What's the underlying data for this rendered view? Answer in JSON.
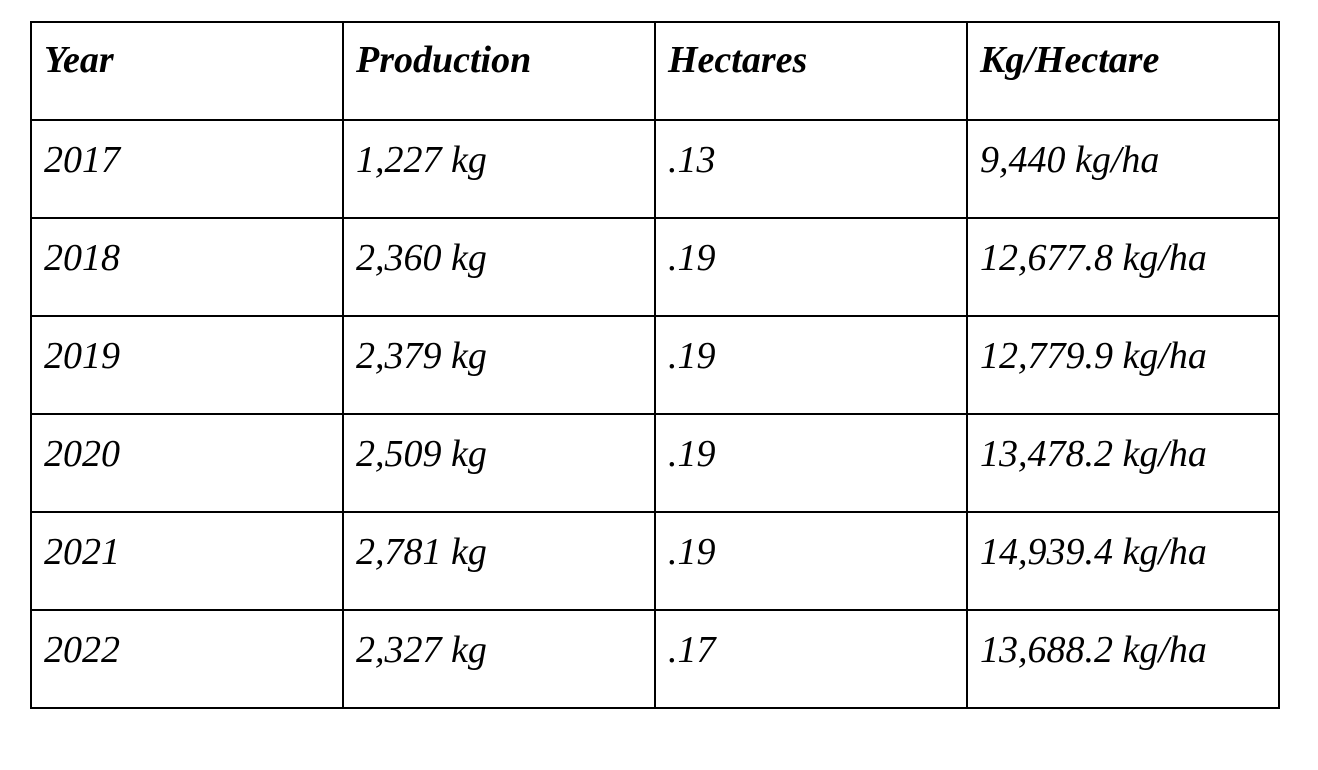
{
  "table": {
    "headers": [
      "Year",
      "Production",
      "Hectares",
      "Kg/Hectare"
    ],
    "rows": [
      [
        "2017",
        "1,227 kg",
        ".13",
        "9,440 kg/ha"
      ],
      [
        "2018",
        "2,360 kg",
        ".19",
        "12,677.8 kg/ha"
      ],
      [
        "2019",
        "2,379 kg",
        ".19",
        "12,779.9 kg/ha"
      ],
      [
        "2020",
        "2,509 kg",
        ".19",
        "13,478.2 kg/ha"
      ],
      [
        "2021",
        "2,781 kg",
        ".19",
        "14,939.4 kg/ha"
      ],
      [
        "2022",
        "2,327 kg",
        ".17",
        "13,688.2 kg/ha"
      ]
    ]
  }
}
